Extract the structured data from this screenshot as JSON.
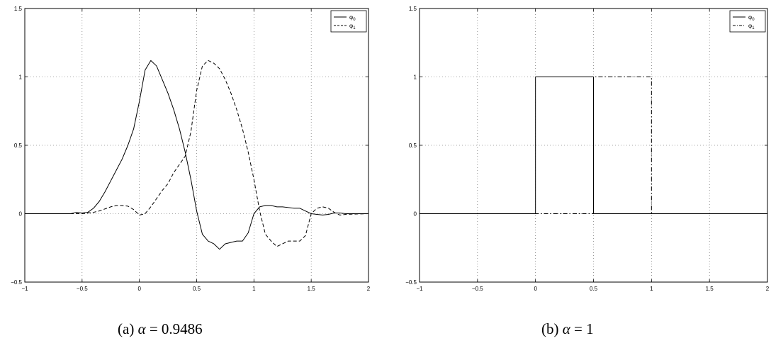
{
  "chart_data": [
    {
      "type": "line",
      "caption": {
        "label": "(a)",
        "symbol": "α",
        "eq": "= 0.9486"
      },
      "xlim": [
        -1,
        2
      ],
      "ylim": [
        -0.5,
        1.5
      ],
      "xticks": [
        "−1",
        "−0.5",
        "0",
        "0.5",
        "1",
        "1.5",
        "2"
      ],
      "yticks": [
        "−0.5",
        "0",
        "0.5",
        "1",
        "1.5"
      ],
      "grid": true,
      "legend": "top-right",
      "series": [
        {
          "name": "φ0",
          "style": "solid",
          "x": [
            -1,
            -0.6,
            -0.55,
            -0.5,
            -0.45,
            -0.4,
            -0.35,
            -0.3,
            -0.25,
            -0.2,
            -0.15,
            -0.1,
            -0.05,
            0,
            0.05,
            0.1,
            0.15,
            0.2,
            0.25,
            0.3,
            0.35,
            0.4,
            0.45,
            0.5,
            0.55,
            0.6,
            0.65,
            0.7,
            0.75,
            0.8,
            0.85,
            0.9,
            0.95,
            1.0,
            1.05,
            1.1,
            1.15,
            1.2,
            1.25,
            1.3,
            1.35,
            1.4,
            1.45,
            1.5,
            1.55,
            1.6,
            1.65,
            1.7,
            1.75,
            1.8,
            2
          ],
          "y": [
            0,
            0,
            0.01,
            0.005,
            0.01,
            0.04,
            0.09,
            0.16,
            0.24,
            0.32,
            0.4,
            0.5,
            0.62,
            0.82,
            1.05,
            1.12,
            1.08,
            0.98,
            0.88,
            0.76,
            0.62,
            0.45,
            0.25,
            0.02,
            -0.15,
            -0.2,
            -0.22,
            -0.26,
            -0.22,
            -0.21,
            -0.2,
            -0.2,
            -0.14,
            0.0,
            0.05,
            0.06,
            0.06,
            0.05,
            0.05,
            0.045,
            0.04,
            0.04,
            0.02,
            0.0,
            -0.005,
            -0.01,
            -0.005,
            0.005,
            0.005,
            0,
            0
          ]
        },
        {
          "name": "φ1",
          "style": "dashed",
          "x": [
            -1,
            -0.5,
            -0.45,
            -0.4,
            -0.35,
            -0.3,
            -0.25,
            -0.2,
            -0.15,
            -0.1,
            -0.05,
            0,
            0.05,
            0.1,
            0.15,
            0.2,
            0.25,
            0.3,
            0.35,
            0.4,
            0.45,
            0.5,
            0.55,
            0.6,
            0.65,
            0.7,
            0.75,
            0.8,
            0.85,
            0.9,
            0.95,
            1.0,
            1.05,
            1.1,
            1.15,
            1.2,
            1.25,
            1.3,
            1.35,
            1.4,
            1.45,
            1.5,
            1.55,
            1.6,
            1.65,
            1.7,
            1.75,
            1.8,
            2
          ],
          "y": [
            0,
            0,
            0.005,
            0.01,
            0.02,
            0.035,
            0.05,
            0.06,
            0.06,
            0.055,
            0.03,
            -0.01,
            0.0,
            0.05,
            0.11,
            0.17,
            0.22,
            0.3,
            0.36,
            0.42,
            0.6,
            0.9,
            1.08,
            1.12,
            1.1,
            1.06,
            0.98,
            0.88,
            0.76,
            0.62,
            0.45,
            0.25,
            0.02,
            -0.15,
            -0.2,
            -0.24,
            -0.22,
            -0.2,
            -0.2,
            -0.2,
            -0.16,
            0.0,
            0.04,
            0.05,
            0.04,
            0.01,
            -0.01,
            -0.005,
            0
          ]
        }
      ]
    },
    {
      "type": "line",
      "caption": {
        "label": "(b)",
        "symbol": "α",
        "eq": "= 1"
      },
      "xlim": [
        -1,
        2
      ],
      "ylim": [
        -0.5,
        1.5
      ],
      "xticks": [
        "−1",
        "−0.5",
        "0",
        "0.5",
        "1",
        "1.5",
        "2"
      ],
      "yticks": [
        "−0.5",
        "0",
        "0.5",
        "1",
        "1.5"
      ],
      "grid": true,
      "legend": "top-right",
      "series": [
        {
          "name": "φ0",
          "style": "solid",
          "x": [
            -1,
            0,
            0,
            0.5,
            0.5,
            2
          ],
          "y": [
            0,
            0,
            1,
            1,
            0,
            0
          ]
        },
        {
          "name": "φ1",
          "style": "dashdot",
          "x": [
            -1,
            0.5,
            0.5,
            1,
            1,
            2
          ],
          "y": [
            0,
            0,
            1,
            1,
            0,
            0
          ]
        }
      ]
    }
  ]
}
